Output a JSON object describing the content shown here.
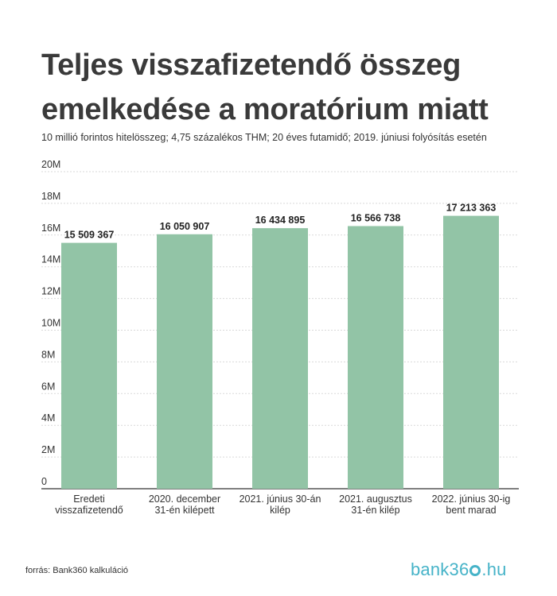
{
  "title_line1": "Teljes visszafizetendő összeg",
  "title_line2": "emelkedése a moratórium miatt",
  "subtitle": "10 millió forintos hitelösszeg; 4,75 százalékos THM; 20 éves futamidő; 2019. júniusi folyósítás esetén",
  "source": "forrás: Bank360 kalkuláció",
  "logo": {
    "text_before": "bank36",
    "text_after": ".hu",
    "color": "#46b3c8"
  },
  "colors": {
    "bar": "#92c4a6",
    "grid": "#d9d9d9",
    "axis": "#333333",
    "text": "#333333"
  },
  "chart_data": {
    "type": "bar",
    "categories": [
      [
        "Eredeti",
        "visszafizetendő"
      ],
      [
        "2020. december",
        "31-én kilépett"
      ],
      [
        "2021. június 30-án",
        "kilép"
      ],
      [
        "2021. augusztus",
        "31-én kilép"
      ],
      [
        "2022. június 30-ig",
        "bent marad"
      ]
    ],
    "values": [
      15509367,
      16050907,
      16434895,
      16566738,
      17213363
    ],
    "data_labels": [
      "15 509 367",
      "16 050 907",
      "16 434 895",
      "16 566 738",
      "17 213 363"
    ],
    "y_ticks": [
      0,
      2000000,
      4000000,
      6000000,
      8000000,
      10000000,
      12000000,
      14000000,
      16000000,
      18000000,
      20000000
    ],
    "y_tick_labels": [
      "0",
      "2M",
      "4M",
      "6M",
      "8M",
      "10M",
      "12M",
      "14M",
      "16M",
      "18M",
      "20M"
    ],
    "ylim": [
      0,
      20000000
    ],
    "grid": true,
    "legend": "none"
  }
}
